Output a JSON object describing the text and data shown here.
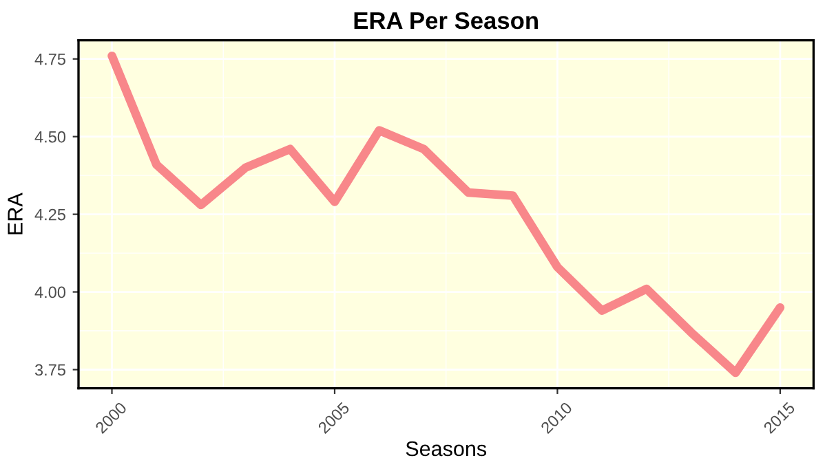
{
  "chart_data": {
    "type": "line",
    "title": "ERA Per Season",
    "xlabel": "Seasons",
    "ylabel": "ERA",
    "x": [
      2000,
      2001,
      2002,
      2003,
      2004,
      2005,
      2006,
      2007,
      2008,
      2009,
      2010,
      2011,
      2012,
      2013,
      2014,
      2015
    ],
    "series": [
      {
        "color": "#f8878a",
        "values": [
          4.76,
          4.41,
          4.28,
          4.4,
          4.46,
          4.29,
          4.52,
          4.46,
          4.32,
          4.31,
          4.08,
          3.94,
          4.01,
          3.87,
          3.74,
          3.95
        ]
      }
    ],
    "xlim": [
      1999.25,
      2015.75
    ],
    "xticks": [
      2000,
      2005,
      2010,
      2015
    ],
    "ylim": [
      3.69,
      4.81
    ],
    "yticks": [
      {
        "value": 3.75,
        "label": "3.75"
      },
      {
        "value": 4.0,
        "label": "4.00"
      },
      {
        "value": 4.25,
        "label": "4.25"
      },
      {
        "value": 4.5,
        "label": "4.50"
      },
      {
        "value": 4.75,
        "label": "4.75"
      }
    ],
    "grid": true,
    "legend": false,
    "line_style": "solid",
    "marker": "none"
  }
}
